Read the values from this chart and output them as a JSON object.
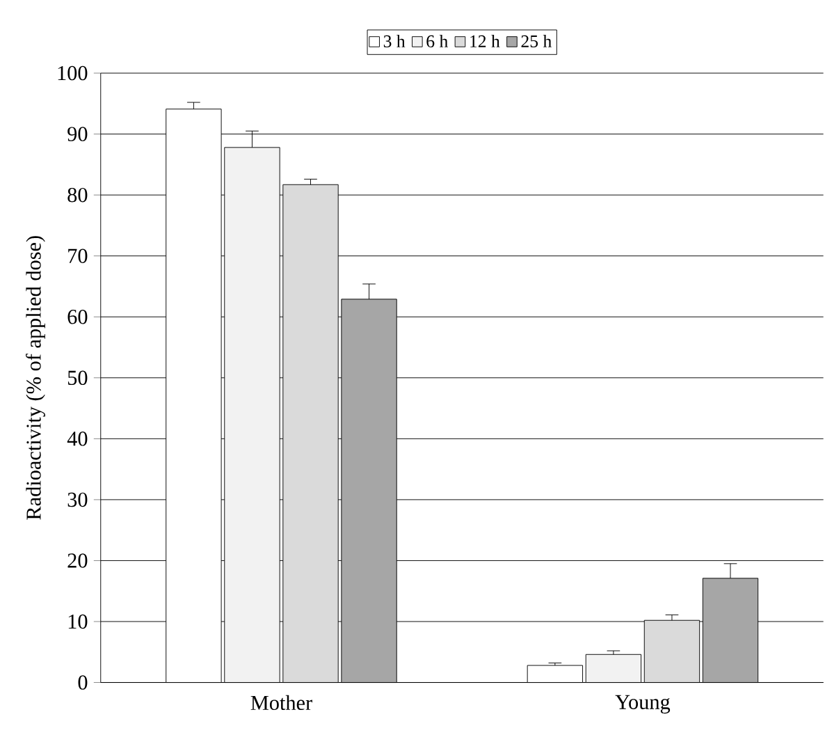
{
  "chart_data": {
    "type": "bar",
    "ylabel": "Radioactivity (% of applied dose)",
    "categories": [
      "Mother",
      "Young"
    ],
    "series": [
      {
        "name": "3 h",
        "color": "#ffffff",
        "values": [
          94.1,
          2.8
        ],
        "errors": [
          1.1,
          0.4
        ]
      },
      {
        "name": "6 h",
        "color": "#f2f2f2",
        "values": [
          87.8,
          4.6
        ],
        "errors": [
          2.7,
          0.6
        ]
      },
      {
        "name": "12 h",
        "color": "#dadada",
        "values": [
          81.7,
          10.2
        ],
        "errors": [
          0.9,
          0.9
        ]
      },
      {
        "name": "25 h",
        "color": "#a6a6a6",
        "values": [
          62.9,
          17.1
        ],
        "errors": [
          2.5,
          2.4
        ]
      }
    ],
    "ylim": [
      0,
      100
    ],
    "yticks": [
      0,
      10,
      20,
      30,
      40,
      50,
      60,
      70,
      80,
      90,
      100
    ],
    "grid": "y",
    "legend": "top"
  }
}
